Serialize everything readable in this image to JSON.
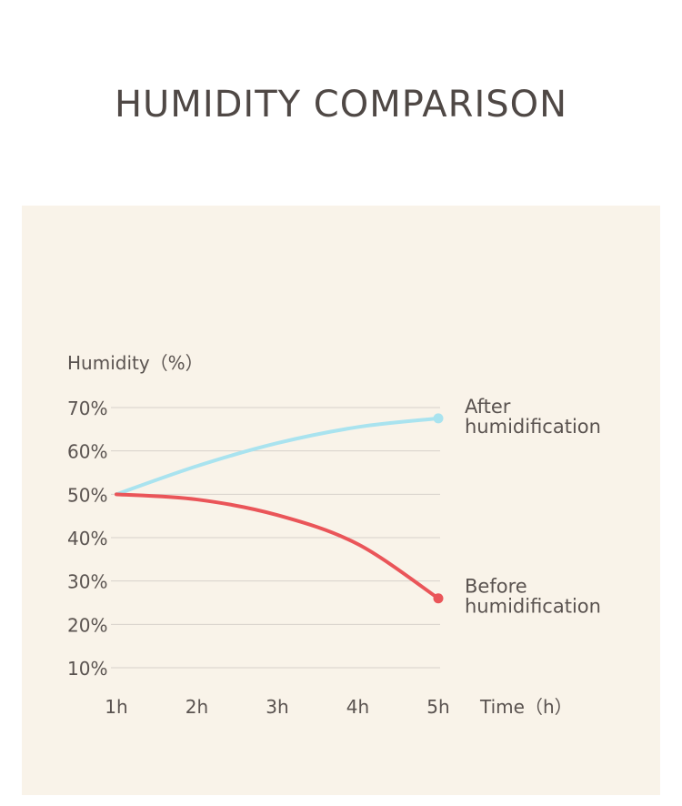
{
  "title": "HUMIDITY COMPARISON",
  "colors": {
    "background": "#f9f3e9",
    "grid": "#d8d2cb",
    "text": "#5a5350",
    "after": "#a9e3ef",
    "before": "#ea5559"
  },
  "chart_data": {
    "type": "line",
    "ylabel": "Humidity（%）",
    "xlabel": "Time（h）",
    "x_ticks": [
      "1h",
      "2h",
      "3h",
      "4h",
      "5h"
    ],
    "y_ticks": [
      "10%",
      "20%",
      "30%",
      "40%",
      "50%",
      "60%",
      "70%"
    ],
    "ylim": [
      10,
      70
    ],
    "xlim": [
      1,
      5
    ],
    "grid": "horizontal",
    "series": [
      {
        "name": "After humidification",
        "name_lines": [
          "After",
          "humidification"
        ],
        "color": "#a9e3ef",
        "x": [
          1,
          2,
          3,
          4,
          5
        ],
        "y": [
          50,
          56.5,
          61.8,
          65.5,
          67.5
        ]
      },
      {
        "name": "Before humidification",
        "name_lines": [
          "Before",
          "humidification"
        ],
        "color": "#ea5559",
        "x": [
          1,
          2,
          3,
          4,
          5
        ],
        "y": [
          50,
          48.8,
          45.2,
          38.5,
          26
        ]
      }
    ]
  }
}
